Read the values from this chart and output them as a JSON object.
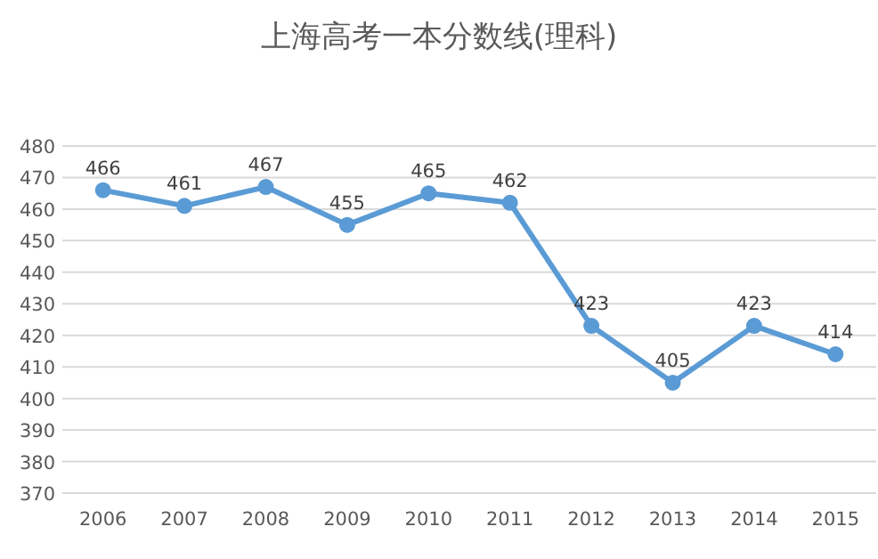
{
  "chart_data": {
    "type": "line",
    "title": "上海高考一本分数线(理科)",
    "categories": [
      "2006",
      "2007",
      "2008",
      "2009",
      "2010",
      "2011",
      "2012",
      "2013",
      "2014",
      "2015"
    ],
    "values": [
      466,
      461,
      467,
      455,
      465,
      462,
      423,
      405,
      423,
      414
    ],
    "color": "#5b9bd5",
    "ylim": [
      370,
      480
    ],
    "yticks": [
      370,
      380,
      390,
      400,
      410,
      420,
      430,
      440,
      450,
      460,
      470,
      480
    ],
    "grid": "y",
    "marker": "circle",
    "data_labels": true
  }
}
